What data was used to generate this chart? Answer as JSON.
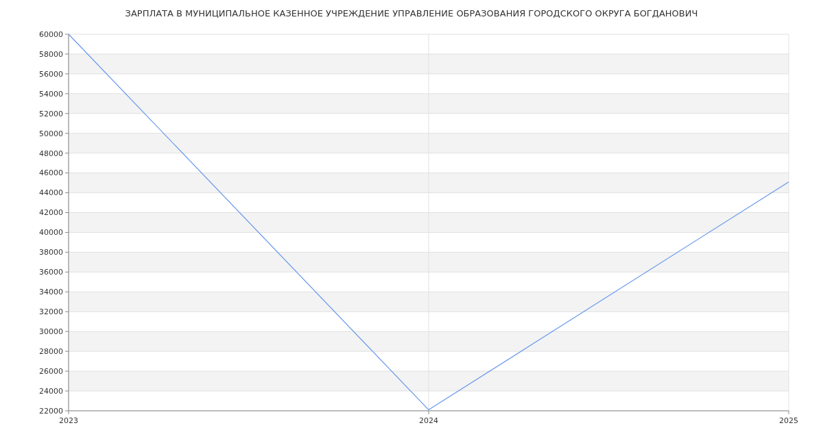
{
  "chart_data": {
    "type": "line",
    "title": "ЗАРПЛАТА В МУНИЦИПАЛЬНОЕ КАЗЕННОЕ УЧРЕЖДЕНИЕ УПРАВЛЕНИЕ ОБРАЗОВАНИЯ ГОРОДСКОГО ОКРУГА БОГДАНОВИЧ",
    "x": [
      2023,
      2024,
      2025
    ],
    "series": [
      {
        "color": "#6495ed",
        "values": [
          60000,
          22100,
          45100
        ]
      }
    ],
    "xlim": [
      2023,
      2025
    ],
    "xticks": [
      2023,
      2024,
      2025
    ],
    "ylim": [
      22000,
      60000
    ],
    "yticks": [
      22000,
      24000,
      26000,
      28000,
      30000,
      32000,
      34000,
      36000,
      38000,
      40000,
      42000,
      44000,
      46000,
      48000,
      50000,
      52000,
      54000,
      56000,
      58000,
      60000
    ],
    "grid": true,
    "marker": "none",
    "line_style": "solid"
  }
}
